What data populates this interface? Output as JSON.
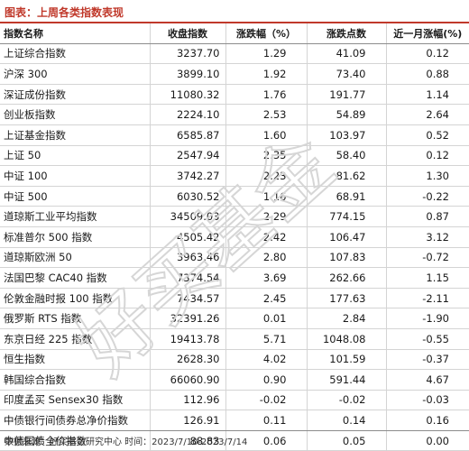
{
  "title": "图表：上周各类指数表现",
  "headers": [
    "指数名称",
    "收盘指数",
    "涨跌幅（%）",
    "涨跌点数",
    "近一月涨幅(%)"
  ],
  "rows": [
    [
      "上证综合指数",
      "3237.70",
      "1.29",
      "41.09",
      "0.12"
    ],
    [
      "沪深 300",
      "3899.10",
      "1.92",
      "73.40",
      "0.88"
    ],
    [
      "深证成份指数",
      "11080.32",
      "1.76",
      "191.77",
      "1.14"
    ],
    [
      "创业板指数",
      "2224.10",
      "2.53",
      "54.89",
      "2.64"
    ],
    [
      "上证基金指数",
      "6585.87",
      "1.60",
      "103.97",
      "0.52"
    ],
    [
      "上证 50",
      "2547.94",
      "2.35",
      "58.40",
      "0.12"
    ],
    [
      "中证 100",
      "3742.27",
      "2.23",
      "81.62",
      "1.30"
    ],
    [
      "中证 500",
      "6030.52",
      "1.16",
      "68.91",
      "-0.22"
    ],
    [
      "道琼斯工业平均指数",
      "34509.03",
      "2.29",
      "774.15",
      "0.87"
    ],
    [
      "标准普尔 500 指数",
      "4505.42",
      "2.42",
      "106.47",
      "3.12"
    ],
    [
      "道琼斯欧洲 50",
      "3963.46",
      "2.80",
      "107.83",
      "-0.72"
    ],
    [
      "法国巴黎 CAC40 指数",
      "7374.54",
      "3.69",
      "262.66",
      "1.15"
    ],
    [
      "伦敦金融时报 100 指数",
      "7434.57",
      "2.45",
      "177.63",
      "-2.11"
    ],
    [
      "俄罗斯 RTS 指数",
      "32391.26",
      "0.01",
      "2.84",
      "-1.90"
    ],
    [
      "东京日经 225 指数",
      "19413.78",
      "5.71",
      "1048.08",
      "-0.55"
    ],
    [
      "恒生指数",
      "2628.30",
      "4.02",
      "101.59",
      "-0.37"
    ],
    [
      "韩国综合指数",
      "66060.90",
      "0.90",
      "591.44",
      "4.67"
    ],
    [
      "印度孟买 Sensex30 指数",
      "112.96",
      "-0.02",
      "-0.02",
      "-0.03"
    ],
    [
      "中债银行间债券总净价指数",
      "126.91",
      "0.11",
      "0.14",
      "0.16"
    ],
    [
      "中债国债全价指数",
      "88.83",
      "0.06",
      "0.05",
      "0.00"
    ]
  ],
  "source": "数据来源：好买基金研究中心 时间：2023/7/10-2023/7/14",
  "watermark": "好买基金",
  "colors": {
    "title": "#c0392b",
    "watermark": "#d9d9d9"
  }
}
